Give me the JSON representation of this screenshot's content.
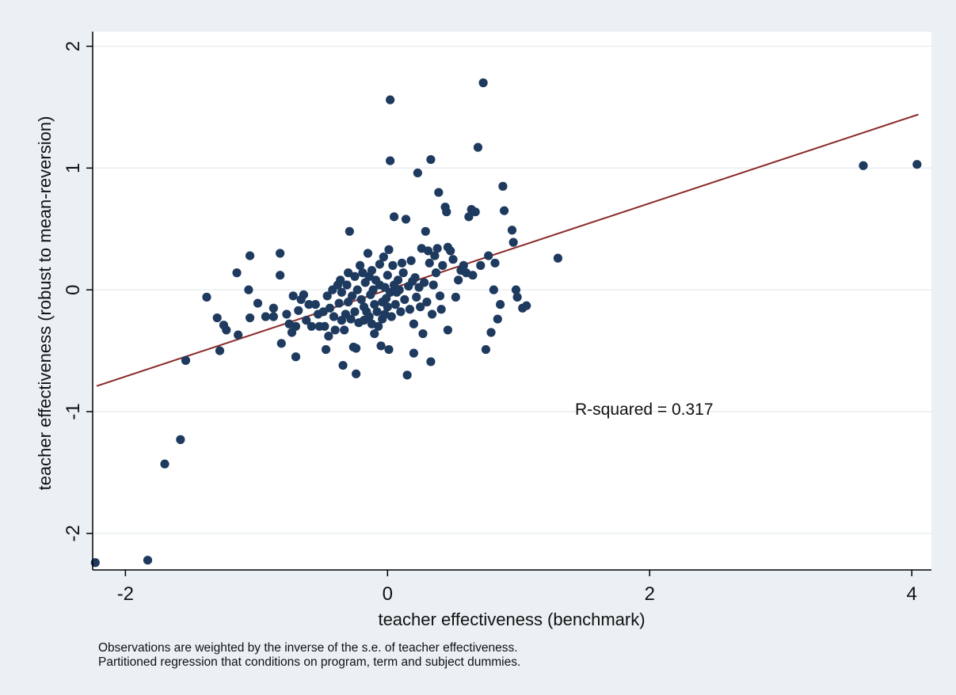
{
  "chart_data": {
    "type": "scatter",
    "title": "",
    "xlabel": "teacher effectiveness (benchmark)",
    "ylabel": "teacher effectiveness (robust to mean-reversion)",
    "xlim": [
      -2.25,
      4.15
    ],
    "ylim": [
      -2.3,
      2.12
    ],
    "xticks": [
      -2,
      0,
      2,
      4
    ],
    "yticks": [
      -2,
      -1,
      0,
      1,
      2
    ],
    "grid": true,
    "legend": "none",
    "annotation": "R-squared = 0.317",
    "fit_line": {
      "x": [
        -2.22,
        4.05
      ],
      "y": [
        -0.79,
        1.44
      ]
    },
    "series": [
      {
        "marker_color": "#1e3a5f",
        "points": [
          [
            -2.23,
            -2.24
          ],
          [
            -1.83,
            -2.22
          ],
          [
            -1.7,
            -1.43
          ],
          [
            -1.58,
            -1.23
          ],
          [
            -1.54,
            -0.58
          ],
          [
            -1.38,
            -0.06
          ],
          [
            -1.3,
            -0.23
          ],
          [
            -1.28,
            -0.5
          ],
          [
            -1.25,
            -0.29
          ],
          [
            -1.23,
            -0.33
          ],
          [
            -1.15,
            0.14
          ],
          [
            -1.14,
            -0.37
          ],
          [
            -1.06,
            0.0
          ],
          [
            -1.05,
            0.28
          ],
          [
            -1.05,
            -0.23
          ],
          [
            -0.99,
            -0.11
          ],
          [
            -0.93,
            -0.22
          ],
          [
            -0.87,
            -0.15
          ],
          [
            -0.87,
            -0.22
          ],
          [
            -0.82,
            0.3
          ],
          [
            -0.82,
            0.12
          ],
          [
            -0.81,
            -0.44
          ],
          [
            -0.77,
            -0.2
          ],
          [
            -0.75,
            -0.28
          ],
          [
            -0.73,
            -0.35
          ],
          [
            -0.72,
            -0.05
          ],
          [
            -0.7,
            -0.3
          ],
          [
            -0.7,
            -0.55
          ],
          [
            -0.68,
            -0.17
          ],
          [
            -0.66,
            -0.08
          ],
          [
            -0.64,
            -0.04
          ],
          [
            -0.62,
            -0.25
          ],
          [
            -0.6,
            -0.12
          ],
          [
            -0.58,
            -0.3
          ],
          [
            -0.55,
            -0.12
          ],
          [
            -0.53,
            -0.2
          ],
          [
            -0.52,
            -0.3
          ],
          [
            -0.49,
            -0.18
          ],
          [
            -0.48,
            -0.3
          ],
          [
            -0.47,
            -0.49
          ],
          [
            -0.46,
            -0.05
          ],
          [
            -0.45,
            -0.38
          ],
          [
            -0.44,
            -0.15
          ],
          [
            -0.42,
            0.0
          ],
          [
            -0.41,
            -0.22
          ],
          [
            -0.4,
            -0.33
          ],
          [
            -0.38,
            0.04
          ],
          [
            -0.37,
            -0.11
          ],
          [
            -0.36,
            0.08
          ],
          [
            -0.35,
            -0.02
          ],
          [
            -0.35,
            -0.25
          ],
          [
            -0.34,
            -0.62
          ],
          [
            -0.33,
            -0.33
          ],
          [
            -0.32,
            -0.2
          ],
          [
            -0.31,
            0.04
          ],
          [
            -0.3,
            0.14
          ],
          [
            -0.3,
            -0.1
          ],
          [
            -0.29,
            0.48
          ],
          [
            -0.28,
            -0.24
          ],
          [
            -0.27,
            -0.05
          ],
          [
            -0.26,
            -0.47
          ],
          [
            -0.25,
            0.11
          ],
          [
            -0.25,
            -0.18
          ],
          [
            -0.24,
            -0.69
          ],
          [
            -0.24,
            -0.48
          ],
          [
            -0.23,
            0.0
          ],
          [
            -0.22,
            -0.27
          ],
          [
            -0.21,
            0.2
          ],
          [
            -0.2,
            -0.08
          ],
          [
            -0.19,
            0.14
          ],
          [
            -0.18,
            -0.14
          ],
          [
            -0.18,
            -0.25
          ],
          [
            -0.17,
            0.06
          ],
          [
            -0.16,
            -0.18
          ],
          [
            -0.15,
            0.3
          ],
          [
            -0.14,
            0.11
          ],
          [
            -0.14,
            -0.22
          ],
          [
            -0.13,
            -0.04
          ],
          [
            -0.12,
            0.16
          ],
          [
            -0.12,
            -0.28
          ],
          [
            -0.11,
            0.0
          ],
          [
            -0.1,
            -0.12
          ],
          [
            -0.1,
            -0.36
          ],
          [
            -0.09,
            0.08
          ],
          [
            -0.08,
            -0.18
          ],
          [
            -0.07,
            -0.3
          ],
          [
            -0.06,
            0.21
          ],
          [
            -0.06,
            0.04
          ],
          [
            -0.05,
            -0.46
          ],
          [
            -0.04,
            -0.24
          ],
          [
            -0.04,
            -0.1
          ],
          [
            -0.03,
            0.27
          ],
          [
            -0.02,
            0.02
          ],
          [
            -0.02,
            -0.2
          ],
          [
            -0.01,
            -0.07
          ],
          [
            0.0,
            0.12
          ],
          [
            0.0,
            -0.14
          ],
          [
            0.01,
            0.33
          ],
          [
            0.01,
            -0.49
          ],
          [
            0.02,
            1.56
          ],
          [
            0.02,
            1.06
          ],
          [
            0.02,
            -0.02
          ],
          [
            0.03,
            -0.22
          ],
          [
            0.04,
            0.2
          ],
          [
            0.05,
            0.04
          ],
          [
            0.05,
            0.6
          ],
          [
            0.06,
            -0.12
          ],
          [
            0.07,
            -0.02
          ],
          [
            0.08,
            0.08
          ],
          [
            0.09,
            0.0
          ],
          [
            0.1,
            -0.18
          ],
          [
            0.11,
            0.22
          ],
          [
            0.12,
            0.14
          ],
          [
            0.13,
            -0.08
          ],
          [
            0.14,
            0.58
          ],
          [
            0.15,
            -0.7
          ],
          [
            0.16,
            0.03
          ],
          [
            0.17,
            -0.16
          ],
          [
            0.18,
            0.24
          ],
          [
            0.19,
            0.07
          ],
          [
            0.2,
            -0.28
          ],
          [
            0.2,
            -0.52
          ],
          [
            0.21,
            0.1
          ],
          [
            0.22,
            -0.06
          ],
          [
            0.23,
            0.96
          ],
          [
            0.24,
            0.02
          ],
          [
            0.25,
            -0.14
          ],
          [
            0.26,
            0.34
          ],
          [
            0.27,
            -0.36
          ],
          [
            0.28,
            0.06
          ],
          [
            0.29,
            0.48
          ],
          [
            0.3,
            -0.1
          ],
          [
            0.31,
            0.32
          ],
          [
            0.32,
            0.22
          ],
          [
            0.33,
            1.07
          ],
          [
            0.33,
            -0.59
          ],
          [
            0.34,
            -0.2
          ],
          [
            0.35,
            0.04
          ],
          [
            0.36,
            0.28
          ],
          [
            0.37,
            0.14
          ],
          [
            0.38,
            0.34
          ],
          [
            0.39,
            0.8
          ],
          [
            0.4,
            -0.05
          ],
          [
            0.41,
            -0.16
          ],
          [
            0.42,
            0.2
          ],
          [
            0.44,
            0.68
          ],
          [
            0.45,
            0.64
          ],
          [
            0.46,
            -0.33
          ],
          [
            0.46,
            0.35
          ],
          [
            0.48,
            0.32
          ],
          [
            0.5,
            0.25
          ],
          [
            0.52,
            -0.06
          ],
          [
            0.54,
            0.08
          ],
          [
            0.56,
            0.16
          ],
          [
            0.58,
            0.2
          ],
          [
            0.6,
            0.14
          ],
          [
            0.62,
            0.6
          ],
          [
            0.64,
            0.66
          ],
          [
            0.65,
            0.12
          ],
          [
            0.67,
            0.64
          ],
          [
            0.69,
            1.17
          ],
          [
            0.71,
            0.2
          ],
          [
            0.73,
            1.7
          ],
          [
            0.75,
            -0.49
          ],
          [
            0.77,
            0.28
          ],
          [
            0.79,
            -0.35
          ],
          [
            0.81,
            0.0
          ],
          [
            0.82,
            0.22
          ],
          [
            0.84,
            -0.24
          ],
          [
            0.86,
            -0.12
          ],
          [
            0.88,
            0.85
          ],
          [
            0.89,
            0.65
          ],
          [
            0.95,
            0.49
          ],
          [
            0.96,
            0.39
          ],
          [
            0.98,
            0.0
          ],
          [
            0.99,
            -0.06
          ],
          [
            1.03,
            -0.15
          ],
          [
            1.06,
            -0.13
          ],
          [
            1.3,
            0.26
          ],
          [
            3.63,
            1.02
          ],
          [
            4.04,
            1.03
          ]
        ]
      }
    ]
  },
  "notes": {
    "line1": "Observations are weighted by the inverse of the s.e. of teacher effectiveness.",
    "line2": "Partitioned regression that conditions on program, term and subject dummies."
  }
}
